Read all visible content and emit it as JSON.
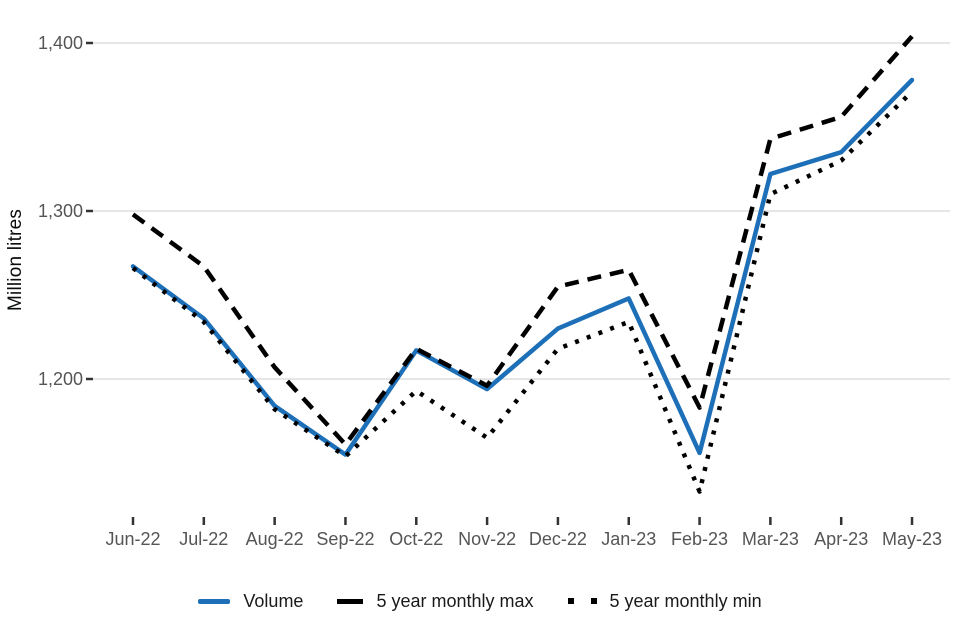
{
  "chart_data": {
    "type": "line",
    "title": "",
    "xlabel": "",
    "ylabel": "Million litres",
    "ylim": [
      1120,
      1410
    ],
    "grid": "horizontal-only",
    "legend_position": "bottom",
    "colors": {
      "volume": "#1d70b8",
      "max": "#000000",
      "min": "#000000",
      "gridline": "#e6e6e6",
      "tick_text": "#555555",
      "tick_mark": "#333333",
      "axis_title": "#0b0c0c"
    },
    "categories": [
      "Jun-22",
      "Jul-22",
      "Aug-22",
      "Sep-22",
      "Oct-22",
      "Nov-22",
      "Dec-22",
      "Jan-23",
      "Feb-23",
      "Mar-23",
      "Apr-23",
      "May-23"
    ],
    "yticks": [
      {
        "value": 1400,
        "label": "1,400"
      },
      {
        "value": 1300,
        "label": "1,300"
      },
      {
        "value": 1200,
        "label": "1,200"
      }
    ],
    "series": [
      {
        "name": "Volume",
        "style": "solid",
        "color": "#1d70b8",
        "values": [
          1267,
          1236,
          1184,
          1155,
          1217,
          1194,
          1230,
          1248,
          1156,
          1322,
          1335,
          1378
        ]
      },
      {
        "name": "5 year monthly max",
        "style": "dashed",
        "color": "#000000",
        "values": [
          1298,
          1267,
          1207,
          1161,
          1218,
          1196,
          1255,
          1265,
          1183,
          1343,
          1356,
          1404
        ]
      },
      {
        "name": "5 year monthly min",
        "style": "dotted",
        "color": "#000000",
        "values": [
          1266,
          1234,
          1182,
          1154,
          1193,
          1165,
          1218,
          1234,
          1133,
          1310,
          1330,
          1371
        ]
      }
    ]
  }
}
